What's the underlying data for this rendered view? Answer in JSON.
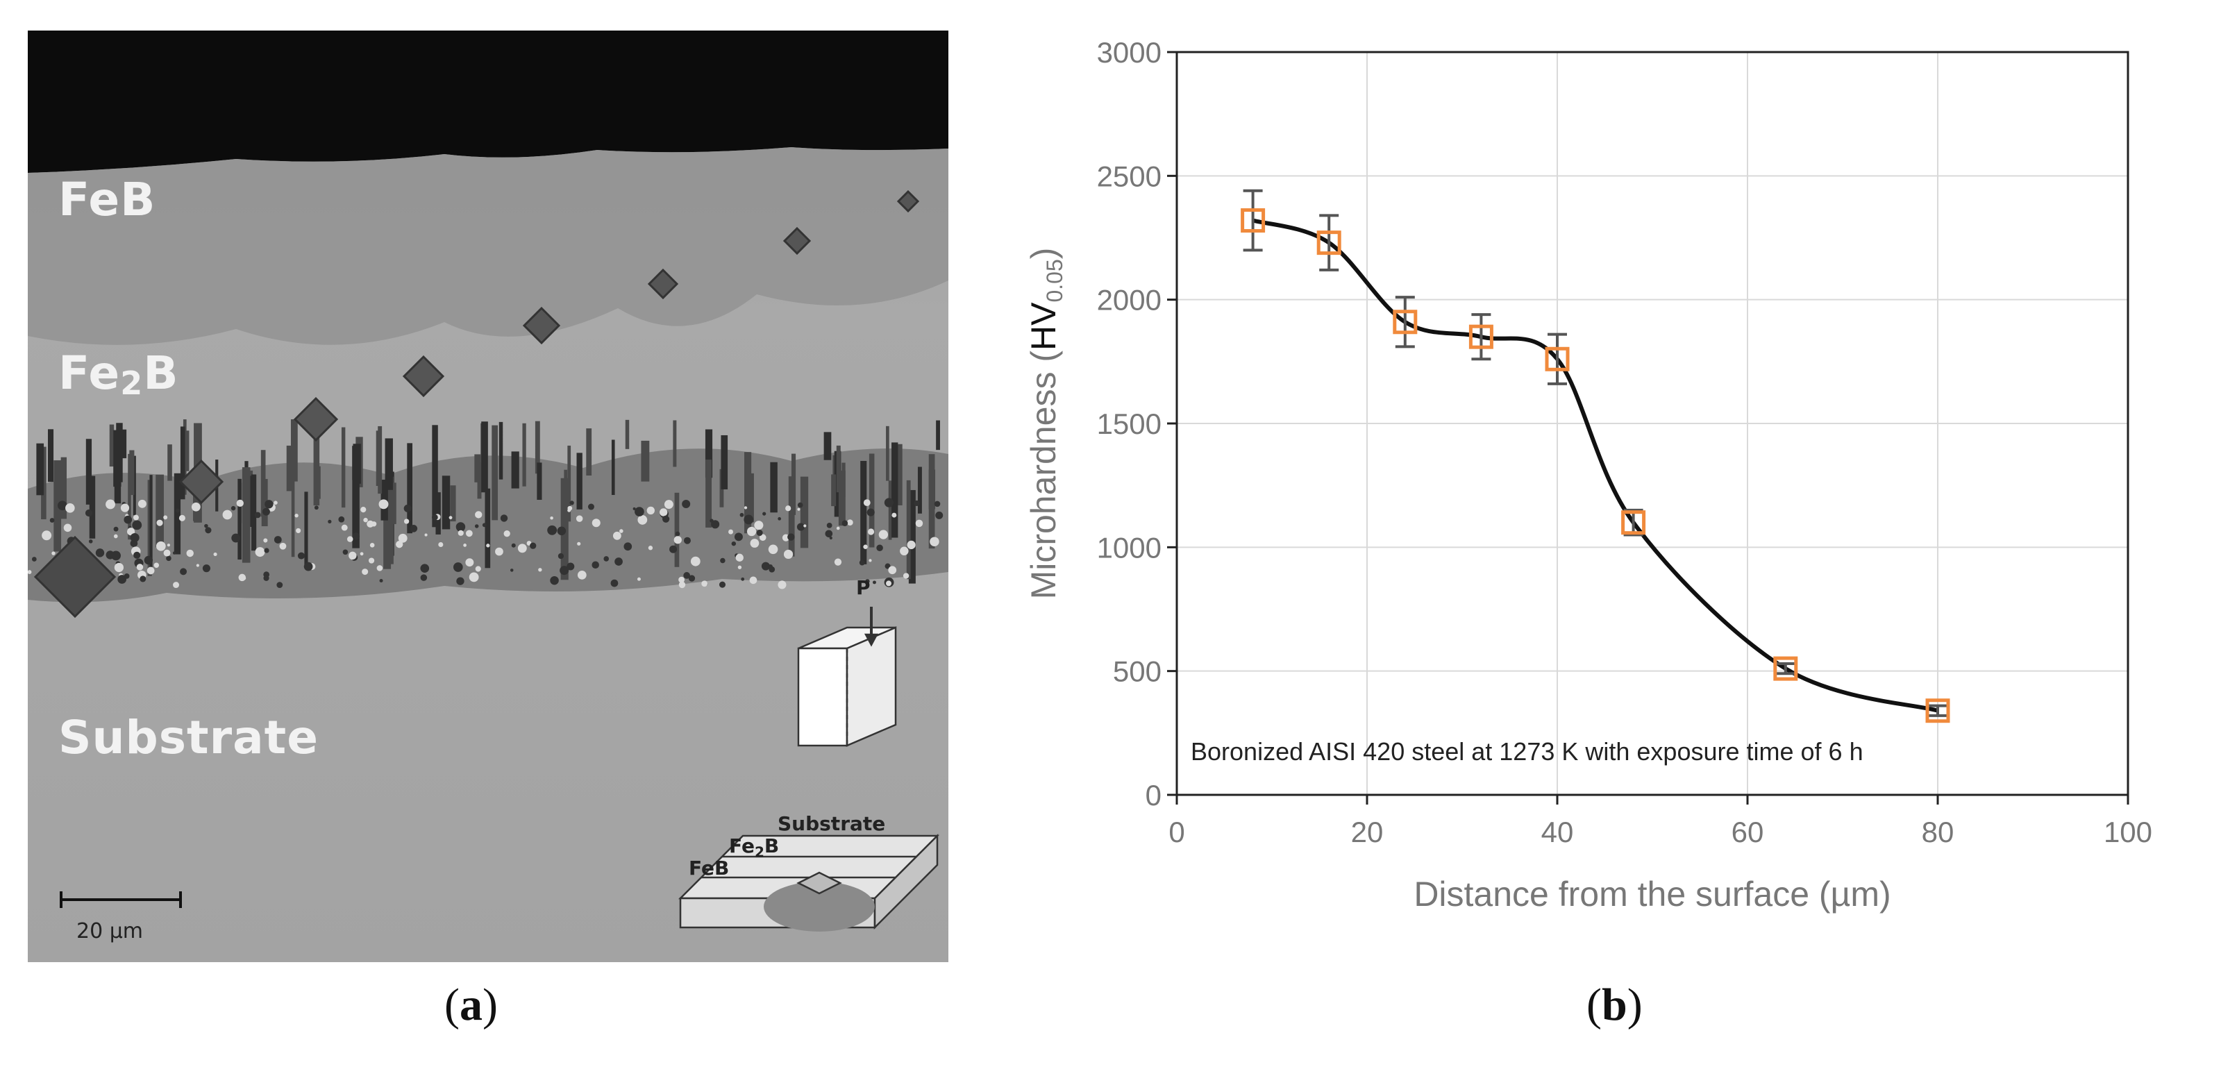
{
  "panel_a": {
    "caption_letter": "a",
    "labels": {
      "feb": "FeB",
      "fe2b_prefix": "Fe",
      "fe2b_sub": "2",
      "fe2b_suffix": "B",
      "substrate": "Substrate"
    },
    "scale_bar": "20 µm",
    "diagram": {
      "load": "P",
      "substrate": "Substrate",
      "fe2b_prefix": "Fe",
      "fe2b_sub": "2",
      "fe2b_suffix": "B",
      "feb": "FeB"
    }
  },
  "panel_b": {
    "caption_letter": "b"
  },
  "chart_data": {
    "type": "line",
    "title": "",
    "xlabel": "Distance from the surface (µm)",
    "ylabel_prefix": "Microhardness (",
    "ylabel_hv": "HV",
    "ylabel_sub": "0.05",
    "ylabel_suffix": ")",
    "xlim": [
      0,
      100
    ],
    "ylim": [
      0,
      3000
    ],
    "xticks": [
      0,
      20,
      40,
      60,
      80,
      100
    ],
    "yticks": [
      0,
      500,
      1000,
      1500,
      2000,
      2500,
      3000
    ],
    "grid": true,
    "annotation": "Boronized AISI 420 steel at 1273 K with exposure time of 6 h",
    "series": [
      {
        "x": [
          8,
          16,
          24,
          32,
          40,
          48,
          64,
          80
        ],
        "y": [
          2320,
          2230,
          1910,
          1850,
          1760,
          1100,
          510,
          340
        ],
        "error": [
          120,
          110,
          100,
          90,
          100,
          50,
          20,
          20
        ],
        "marker": "square",
        "marker_color": "#f08a3c",
        "line_color": "#111111",
        "errorbar_color": "#555555"
      }
    ]
  }
}
